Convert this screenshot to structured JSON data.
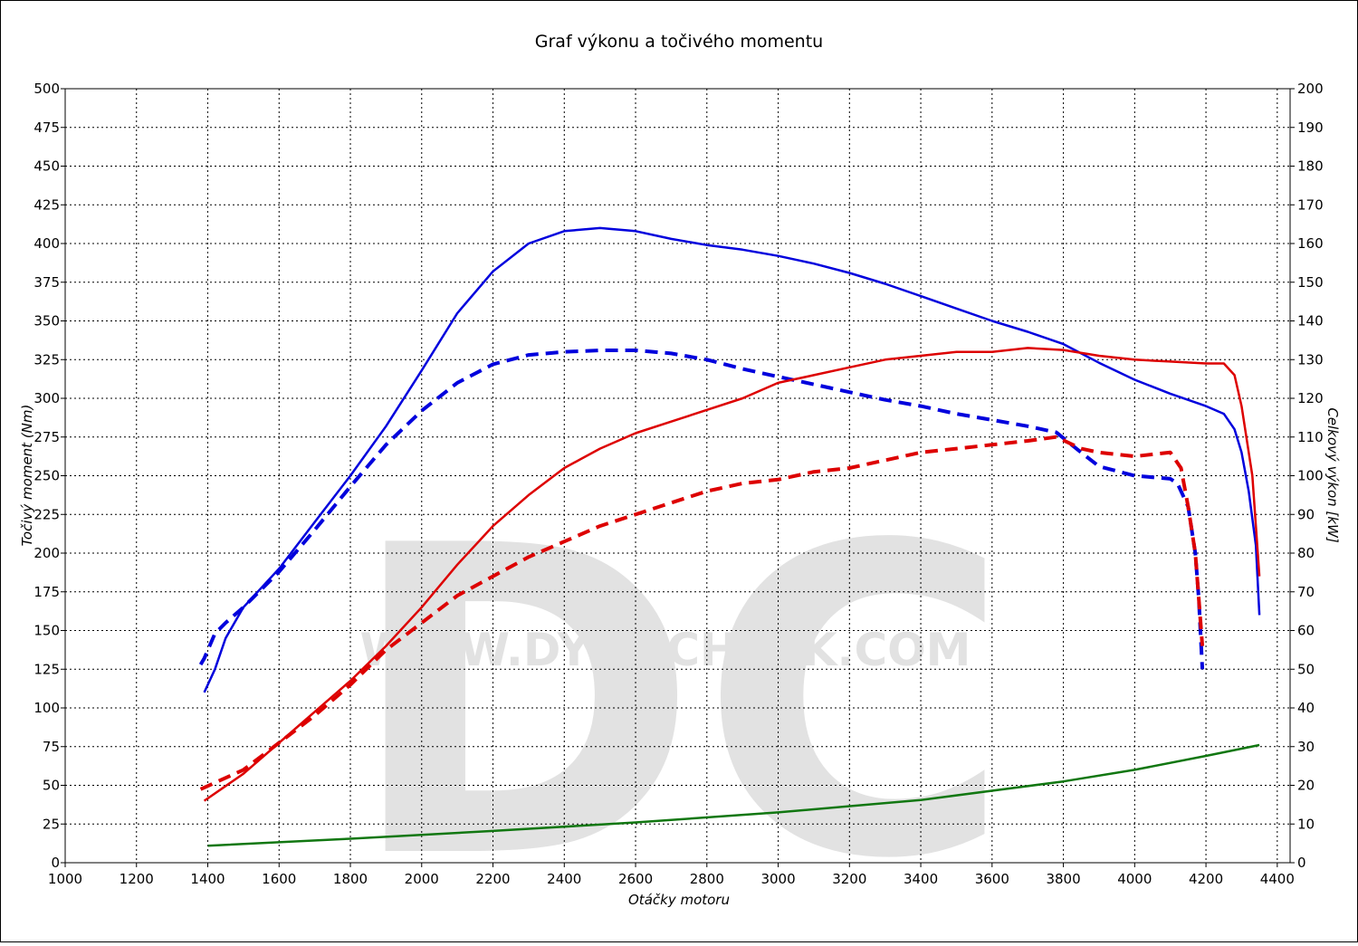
{
  "chart_data": {
    "type": "line",
    "title": "Graf výkonu a točivého momentu",
    "xlabel": "Otáčky motoru",
    "ylabel": "Točivý moment (Nm)",
    "y2label": "Celkový výkon [kW]",
    "watermark": [
      "DC",
      "WWW.DYNOCHECK.COM"
    ],
    "xlim": [
      1000,
      4436
    ],
    "xticks": [
      1000,
      1200,
      1400,
      1600,
      1800,
      2000,
      2200,
      2400,
      2600,
      2800,
      3000,
      3200,
      3400,
      3600,
      3800,
      4000,
      4200,
      4400
    ],
    "ylim": [
      0,
      500
    ],
    "yticks": [
      0,
      25,
      50,
      75,
      100,
      125,
      150,
      175,
      200,
      225,
      250,
      275,
      300,
      325,
      350,
      375,
      400,
      425,
      450,
      475,
      500
    ],
    "y2lim": [
      0,
      200
    ],
    "y2ticks": [
      0,
      10,
      20,
      30,
      40,
      50,
      60,
      70,
      80,
      90,
      100,
      110,
      120,
      130,
      140,
      150,
      160,
      170,
      180,
      190,
      200
    ],
    "grid": true,
    "series": [
      {
        "color": "#0000dd",
        "dash": false,
        "axis": "y",
        "x": [
          1390,
          1420,
          1450,
          1500,
          1600,
          1700,
          1800,
          1900,
          2000,
          2100,
          2200,
          2300,
          2400,
          2500,
          2600,
          2700,
          2800,
          2900,
          3000,
          3100,
          3200,
          3300,
          3400,
          3500,
          3600,
          3700,
          3800,
          3900,
          4000,
          4100,
          4200,
          4250,
          4280,
          4300,
          4320,
          4340,
          4350
        ],
        "values": [
          110,
          125,
          145,
          165,
          190,
          220,
          250,
          282,
          318,
          355,
          382,
          400,
          408,
          410,
          408,
          403,
          399,
          396,
          392,
          387,
          381,
          374,
          366,
          358,
          350,
          343,
          335,
          323,
          312,
          303,
          295,
          290,
          280,
          265,
          240,
          205,
          160
        ]
      },
      {
        "color": "#0000dd",
        "dash": true,
        "axis": "y",
        "x": [
          1380,
          1390,
          1420,
          1450,
          1500,
          1600,
          1700,
          1800,
          1900,
          2000,
          2100,
          2200,
          2300,
          2400,
          2500,
          2600,
          2700,
          2800,
          2900,
          3000,
          3100,
          3200,
          3300,
          3400,
          3500,
          3600,
          3700,
          3780,
          3850,
          3900,
          4000,
          4100,
          4120,
          4150,
          4170,
          4180,
          4190
        ],
        "values": [
          128,
          132,
          148,
          155,
          165,
          188,
          215,
          243,
          270,
          292,
          310,
          322,
          328,
          330,
          331,
          331,
          329,
          325,
          319,
          314,
          309,
          304,
          299,
          295,
          290,
          286,
          282,
          278,
          265,
          256,
          250,
          248,
          245,
          230,
          200,
          170,
          125
        ]
      },
      {
        "color": "#dd0000",
        "dash": false,
        "axis": "y2",
        "x": [
          1390,
          1500,
          1600,
          1700,
          1800,
          1900,
          2000,
          2100,
          2200,
          2300,
          2400,
          2500,
          2600,
          2700,
          2800,
          2900,
          3000,
          3100,
          3200,
          3300,
          3400,
          3500,
          3600,
          3700,
          3800,
          3900,
          4000,
          4100,
          4200,
          4250,
          4280,
          4300,
          4330,
          4350
        ],
        "values": [
          16,
          23,
          31,
          39,
          47,
          56,
          66,
          77,
          87,
          95,
          102,
          107,
          111,
          114,
          117,
          120,
          124,
          126,
          128,
          130,
          131,
          132,
          132,
          133,
          132.5,
          131,
          130,
          129.5,
          129,
          129,
          126,
          118,
          100,
          74
        ]
      },
      {
        "color": "#dd0000",
        "dash": true,
        "axis": "y2",
        "x": [
          1380,
          1500,
          1600,
          1700,
          1800,
          1900,
          2000,
          2100,
          2200,
          2300,
          2400,
          2500,
          2600,
          2700,
          2800,
          2900,
          3000,
          3100,
          3200,
          3300,
          3400,
          3500,
          3600,
          3700,
          3780,
          3850,
          3900,
          4000,
          4100,
          4130,
          4150,
          4170,
          4190
        ],
        "values": [
          19,
          24,
          31,
          38,
          46,
          55,
          62,
          69,
          74,
          79,
          83,
          87,
          90,
          93,
          96,
          98,
          99,
          101,
          102,
          104,
          106,
          107,
          108,
          109,
          110,
          107,
          106,
          105,
          106,
          102,
          92,
          80,
          56
        ]
      },
      {
        "color": "#117711",
        "dash": false,
        "axis": "y2",
        "x": [
          1400,
          1800,
          2200,
          2600,
          3000,
          3400,
          3800,
          4000,
          4200,
          4350
        ],
        "values": [
          4.4,
          6.2,
          8.2,
          10.4,
          13,
          16.2,
          21,
          24,
          27.6,
          30.4
        ]
      }
    ]
  }
}
